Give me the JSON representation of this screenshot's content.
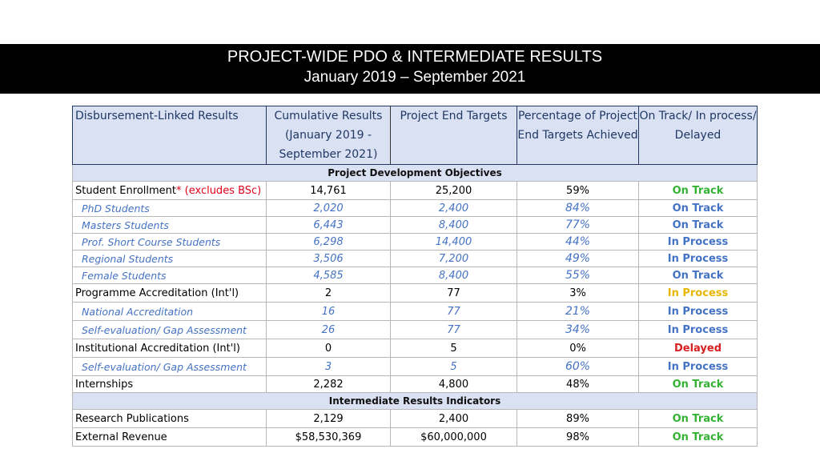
{
  "slide": {
    "title_line1": "PROJECT-WIDE PDO & INTERMEDIATE RESULTS",
    "title_line2": "January 2019 – September 2021"
  },
  "table": {
    "headers": {
      "label": "Disbursement-Linked Results",
      "cumulative": "Cumulative Results (January 2019 - September  2021)",
      "targets": "Project End Targets",
      "percentage": "Percentage of Project End Targets Achieved",
      "status": "On Track/ In process/ Delayed"
    },
    "sections": {
      "pdo": "Project Development Objectives",
      "iri": "Intermediate Results Indicators"
    },
    "rows": [
      {
        "label": "Student Enrollment",
        "note": "* (excludes BSc)",
        "cumulative": "14,761",
        "target": "25,200",
        "pct": "59%",
        "status": "On Track"
      },
      {
        "label": "PhD Students",
        "cumulative": "2,020",
        "target": "2,400",
        "pct": "84%",
        "status": "On Track"
      },
      {
        "label": "Masters Students",
        "cumulative": "6,443",
        "target": "8,400",
        "pct": "77%",
        "status": "On Track"
      },
      {
        "label": "Prof. Short Course Students",
        "cumulative": "6,298",
        "target": "14,400",
        "pct": "44%",
        "status": "In Process"
      },
      {
        "label": "Regional Students",
        "cumulative": "3,506",
        "target": "7,200",
        "pct": "49%",
        "status": "In Process"
      },
      {
        "label": "Female Students",
        "cumulative": "4,585",
        "target": "8,400",
        "pct": "55%",
        "status": "On Track"
      },
      {
        "label": "Programme Accreditation (Int'l)",
        "cumulative": "2",
        "target": "77",
        "pct": "3%",
        "status": "In Process"
      },
      {
        "label": "National Accreditation",
        "cumulative": "16",
        "target": "77",
        "pct": "21%",
        "status": "In Process"
      },
      {
        "label": "Self-evaluation/ Gap Assessment",
        "cumulative": "26",
        "target": "77",
        "pct": "34%",
        "status": "In Process"
      },
      {
        "label": "Institutional Accreditation (Int'l)",
        "cumulative": "0",
        "target": "5",
        "pct": "0%",
        "status": "Delayed"
      },
      {
        "label": "Self-evaluation/ Gap Assessment",
        "cumulative": "3",
        "target": "5",
        "pct": "60%",
        "status": "In Process"
      },
      {
        "label": "Internships",
        "cumulative": "2,282",
        "target": "4,800",
        "pct": "48%",
        "status": "On Track"
      },
      {
        "label": "Research Publications",
        "cumulative": "2,129",
        "target": "2,400",
        "pct": "89%",
        "status": "On Track"
      },
      {
        "label": "External Revenue",
        "cumulative": "$58,530,369",
        "target": "$60,000,000",
        "pct": "98%",
        "status": "On Track"
      }
    ]
  },
  "colors": {
    "on_track": "#33b233",
    "in_process": "#e8b600",
    "delayed": "#d92020",
    "sub_row_text": "#4472c4",
    "header_fill": "#d9e1f2",
    "title_bar": "#000000"
  }
}
